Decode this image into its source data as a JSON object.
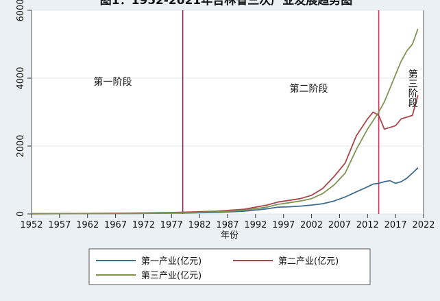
{
  "chart_data": {
    "type": "line",
    "title": "图1：1952-2021年吉林省三次产业发展趋势图",
    "xlabel": "年份",
    "ylabel": "",
    "xlim": [
      1952,
      2022
    ],
    "ylim": [
      0,
      6000
    ],
    "x_ticks": [
      1952,
      1957,
      1962,
      1967,
      1972,
      1977,
      1982,
      1987,
      1992,
      1997,
      2002,
      2007,
      2012,
      2017,
      2022
    ],
    "y_ticks": [
      0,
      2000,
      4000,
      6000
    ],
    "vertical_lines": [
      1979,
      2014
    ],
    "stage_labels": [
      {
        "text": "第一阶段",
        "x": 1966.5,
        "y": 3800,
        "vertical": false
      },
      {
        "text": "第二阶段",
        "x": 2001.5,
        "y": 3600,
        "vertical": false
      },
      {
        "text": "第三阶段",
        "x": 2020,
        "y": 3700,
        "vertical": true
      }
    ],
    "legend_position": "bottom",
    "series": [
      {
        "name": "第一产业(亿元)",
        "color": "#3d6b8e",
        "x": [
          1952,
          1960,
          1970,
          1978,
          1985,
          1990,
          1994,
          1996,
          1998,
          2000,
          2002,
          2004,
          2006,
          2008,
          2010,
          2012,
          2013,
          2014,
          2015,
          2016,
          2017,
          2018,
          2019,
          2020,
          2021
        ],
        "y": [
          8,
          10,
          15,
          25,
          45,
          80,
          150,
          200,
          210,
          230,
          260,
          300,
          380,
          500,
          650,
          800,
          880,
          900,
          950,
          980,
          900,
          950,
          1050,
          1200,
          1360
        ]
      },
      {
        "name": "第二产业(亿元)",
        "color": "#a8454a",
        "x": [
          1952,
          1960,
          1970,
          1978,
          1985,
          1990,
          1994,
          1996,
          1998,
          2000,
          2002,
          2004,
          2006,
          2008,
          2010,
          2012,
          2013,
          2014,
          2015,
          2016,
          2017,
          2018,
          2019,
          2020,
          2021
        ],
        "y": [
          5,
          12,
          25,
          45,
          80,
          140,
          260,
          350,
          400,
          450,
          550,
          750,
          1100,
          1500,
          2300,
          2800,
          3000,
          2900,
          2500,
          2550,
          2600,
          2800,
          2850,
          2900,
          3500
        ]
      },
      {
        "name": "第三产业(亿元)",
        "color": "#7f9450",
        "x": [
          1952,
          1960,
          1970,
          1978,
          1985,
          1990,
          1994,
          1996,
          1998,
          2000,
          2002,
          2004,
          2006,
          2008,
          2010,
          2012,
          2013,
          2014,
          2015,
          2016,
          2017,
          2018,
          2019,
          2020,
          2021
        ],
        "y": [
          4,
          8,
          15,
          30,
          60,
          110,
          200,
          280,
          330,
          380,
          450,
          600,
          850,
          1200,
          1900,
          2500,
          2750,
          3000,
          3300,
          3700,
          4100,
          4500,
          4800,
          5000,
          5450
        ]
      }
    ]
  }
}
